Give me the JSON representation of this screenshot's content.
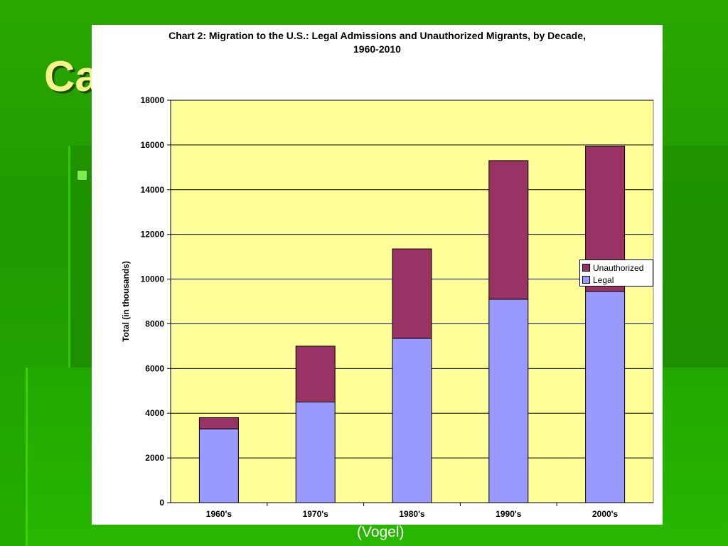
{
  "slide": {
    "title_fragment": "Ca",
    "credit": "(Vogel)"
  },
  "chart_data": {
    "type": "bar",
    "stacked": true,
    "title_line1": "Chart 2: Migration to the U.S.: Legal Admissions and Unauthorized Migrants, by Decade,",
    "title_line2": "1960-2010",
    "xlabel": "",
    "ylabel": "Total (in thousands)",
    "ylim": [
      0,
      18000
    ],
    "yticks": [
      0,
      2000,
      4000,
      6000,
      8000,
      10000,
      12000,
      14000,
      16000,
      18000
    ],
    "grid": true,
    "legend_position": "right",
    "categories": [
      "1960's",
      "1970's",
      "1980's",
      "1990's",
      "2000's"
    ],
    "series": [
      {
        "name": "Legal",
        "values": [
          3300,
          4500,
          7350,
          9100,
          9450
        ],
        "color": "#9999ff"
      },
      {
        "name": "Unauthorized",
        "values": [
          500,
          2500,
          4000,
          6200,
          6500
        ],
        "color": "#993366"
      }
    ],
    "plot_background": "#ffff99"
  }
}
